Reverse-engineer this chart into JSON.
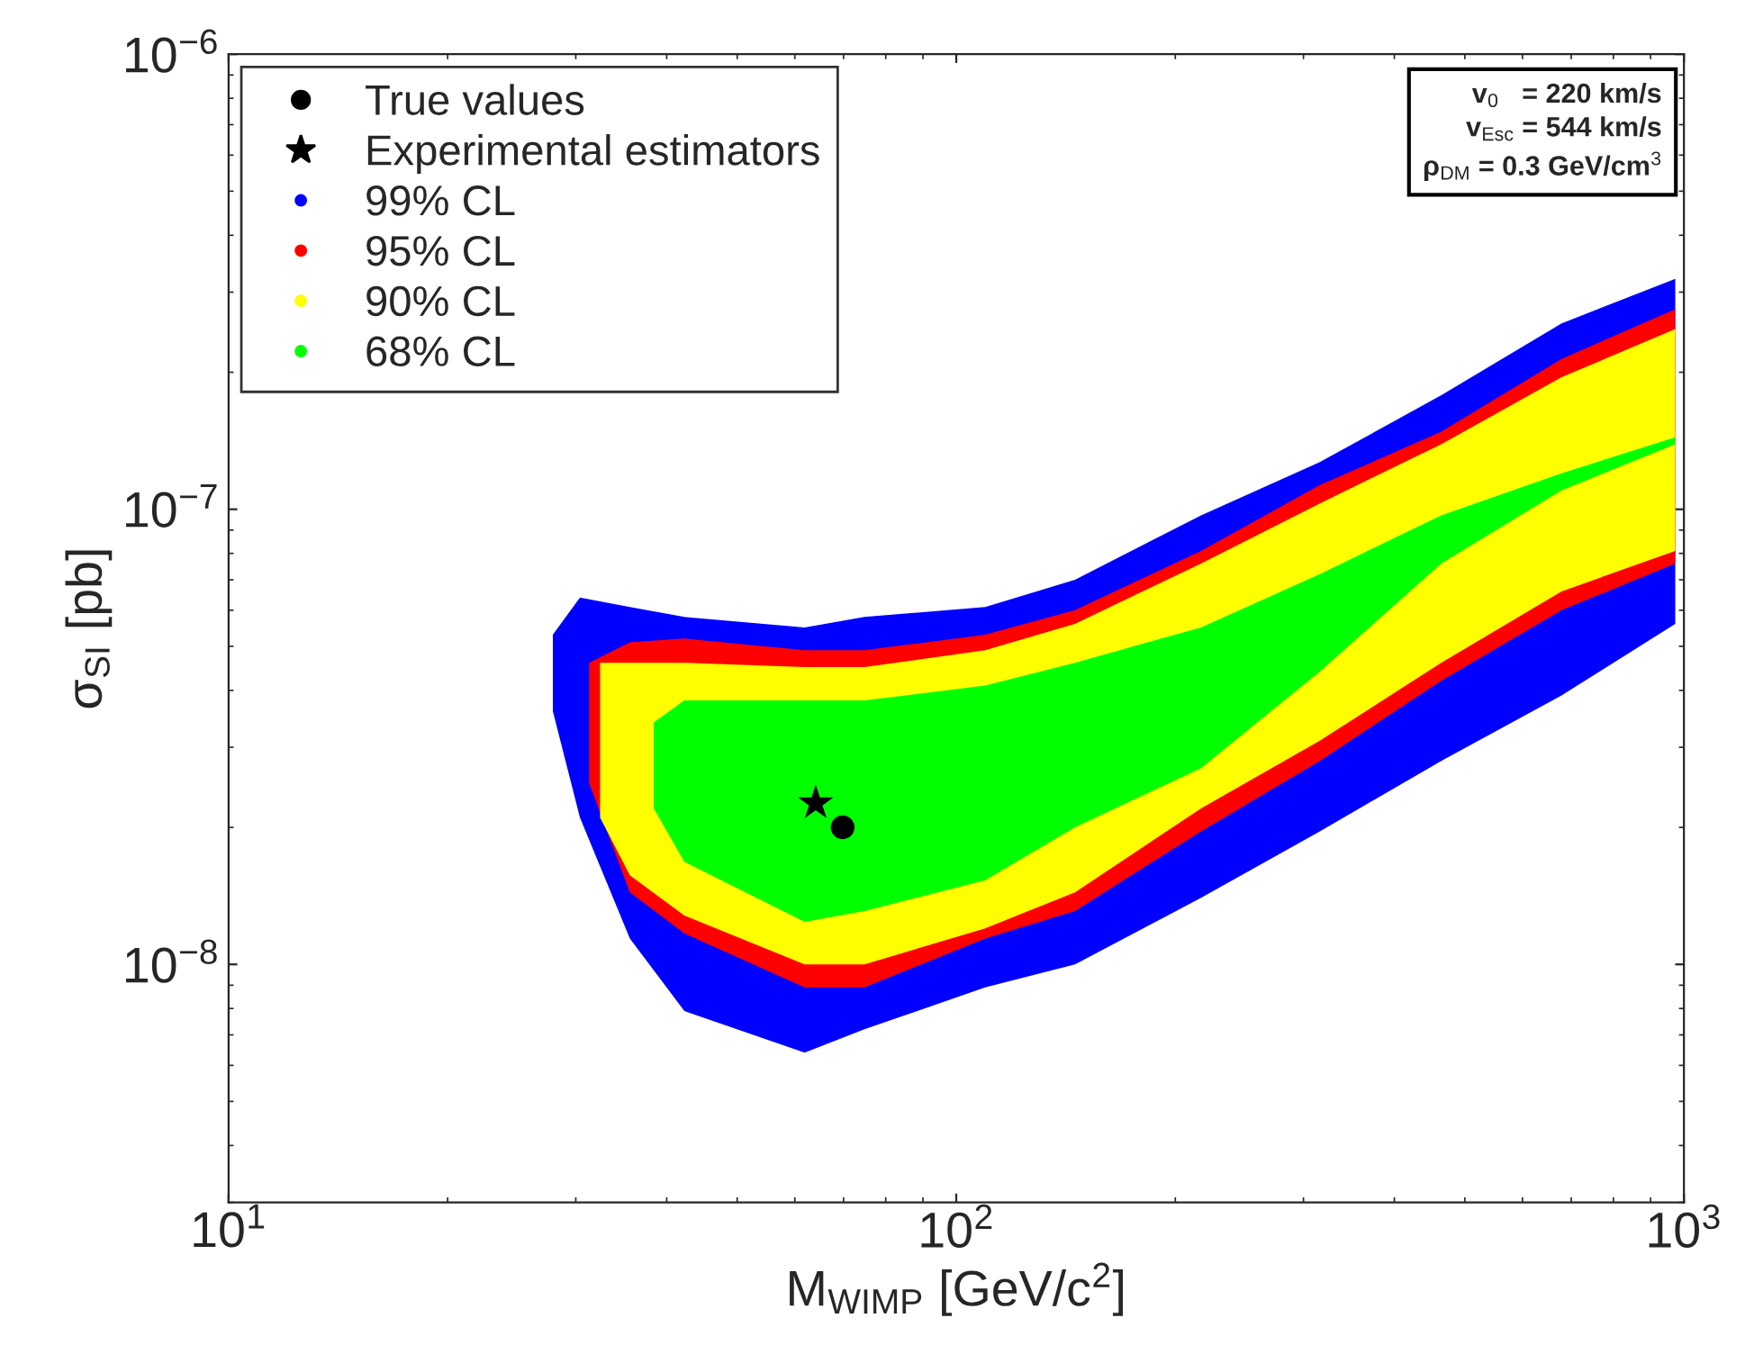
{
  "chart_data": {
    "type": "line",
    "xlabel": "M$_{WIMP}$ [GeV/c$^{2}$]",
    "ylabel": "σ$_{SI}$ [pb]",
    "log": "xy",
    "xlim": [
      10,
      1000
    ],
    "ylim": [
      3e-09,
      1e-06
    ],
    "xticks": [
      {
        "value": 10,
        "label": "10$^{1}$"
      },
      {
        "value": 100,
        "label": "10$^{2}$"
      },
      {
        "value": 1000,
        "label": "10$^{3}$"
      }
    ],
    "yticks": [
      {
        "value": 1e-08,
        "label": "10$^{−8}$"
      },
      {
        "value": 1e-07,
        "label": "10$^{−7}$"
      },
      {
        "value": 1e-06,
        "label": "10$^{−6}$"
      }
    ],
    "grid": false,
    "legend": "top left",
    "annotations": [
      "v$_{0}$   = 220 km/s",
      "v$_{Esc}$ = 544 km/s",
      "ρ$_{DM}$ = 0.3 GeV/cm$^{3}$"
    ],
    "series": [
      {
        "name": "True values",
        "type": "scatter",
        "marker": "circle",
        "color": "#000000",
        "x": [
          69.8
        ],
        "values": [
          2e-08
        ]
      },
      {
        "name": "Experimental estimators",
        "type": "scatter",
        "marker": "star",
        "color": "#000000",
        "x": [
          64.1
        ],
        "values": [
          2.26e-08
        ]
      },
      {
        "name": "99% CL",
        "color": "#0000ff",
        "x": [
          27.9,
          30.4,
          35.6,
          42.3,
          61.9,
          74.8,
          109.6,
          145.6,
          217,
          316,
          464,
          679,
          973
        ],
        "values": [
          null,
          null,
          null,
          null,
          null,
          null,
          null,
          null,
          null,
          null,
          null,
          null,
          null
        ],
        "upper": [
          5.3e-08,
          6.4e-08,
          6.1e-08,
          5.8e-08,
          5.5e-08,
          5.8e-08,
          6.1e-08,
          7e-08,
          9.7e-08,
          1.27e-07,
          1.78e-07,
          2.56e-07,
          3.21e-07
        ],
        "lower": [
          3.6e-08,
          2.1e-08,
          1.14e-08,
          7.9e-09,
          6.4e-09,
          7.2e-09,
          8.9e-09,
          1e-08,
          1.4e-08,
          1.96e-08,
          2.8e-08,
          3.9e-08,
          5.6e-08
        ]
      },
      {
        "name": "95% CL",
        "color": "#ff0000",
        "x": [
          31.3,
          35.6,
          42.3,
          61.9,
          74.8,
          109.6,
          145.6,
          217,
          316,
          464,
          679,
          973
        ],
        "values": [
          null,
          null,
          null,
          null,
          null,
          null,
          null,
          null,
          null,
          null,
          null,
          null
        ],
        "upper": [
          4.6e-08,
          5.1e-08,
          5.2e-08,
          4.9e-08,
          4.9e-08,
          5.3e-08,
          6e-08,
          8.1e-08,
          1.13e-07,
          1.48e-07,
          2.14e-07,
          2.75e-07
        ],
        "lower": [
          2.5e-08,
          1.44e-08,
          1.17e-08,
          8.9e-09,
          8.9e-09,
          1.14e-08,
          1.31e-08,
          1.96e-08,
          2.8e-08,
          4.2e-08,
          6e-08,
          7.6e-08
        ]
      },
      {
        "name": "90% CL",
        "color": "#ffff00",
        "x": [
          32.4,
          35.6,
          42.3,
          61.9,
          74.8,
          109.6,
          145.6,
          217,
          316,
          464,
          679,
          973
        ],
        "values": [
          null,
          null,
          null,
          null,
          null,
          null,
          null,
          null,
          null,
          null,
          null,
          null
        ],
        "upper": [
          4.6e-08,
          4.6e-08,
          4.6e-08,
          4.5e-08,
          4.5e-08,
          4.9e-08,
          5.6e-08,
          7.6e-08,
          1.03e-07,
          1.39e-07,
          1.95e-07,
          2.49e-07
        ],
        "lower": [
          2.1e-08,
          1.57e-08,
          1.28e-08,
          1e-08,
          1e-08,
          1.2e-08,
          1.44e-08,
          2.2e-08,
          3.1e-08,
          4.6e-08,
          6.6e-08,
          8.1e-08
        ]
      },
      {
        "name": "68% CL",
        "color": "#00ff00",
        "x": [
          38.4,
          42.3,
          61.9,
          74.8,
          109.6,
          145.6,
          217,
          316,
          464,
          679,
          973
        ],
        "values": [
          null,
          null,
          null,
          null,
          null,
          null,
          null,
          null,
          null,
          null,
          null
        ],
        "upper": [
          3.4e-08,
          3.8e-08,
          3.8e-08,
          3.8e-08,
          4.1e-08,
          4.6e-08,
          5.5e-08,
          7.2e-08,
          9.7e-08,
          1.2e-07,
          1.44e-07
        ],
        "lower": [
          2.2e-08,
          1.68e-08,
          1.24e-08,
          1.31e-08,
          1.53e-08,
          2e-08,
          2.7e-08,
          4.4e-08,
          7.6e-08,
          1.1e-07,
          1.39e-07
        ]
      }
    ]
  }
}
